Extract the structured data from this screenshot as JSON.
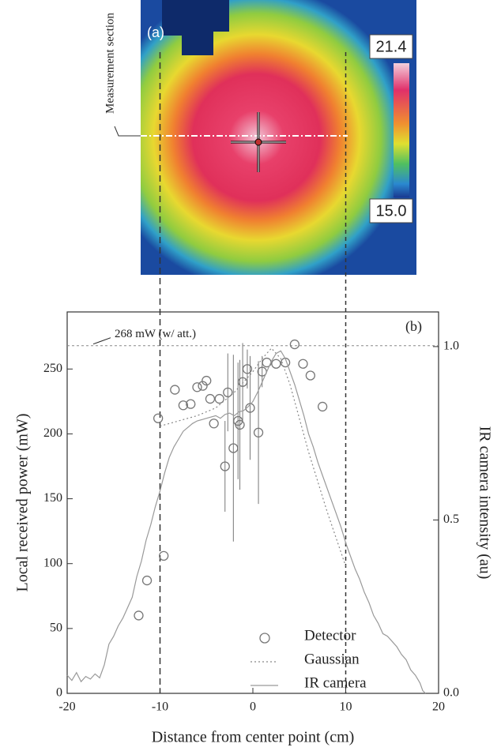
{
  "image": {
    "label": "(a)",
    "section_label": "Measurement section",
    "colorbar_max": "21.4",
    "colorbar_min": "15.0"
  },
  "chart_data": {
    "type": "line",
    "label": "(b)",
    "xlabel": "Distance from center point (cm)",
    "ylabel": "Local received power (mW)",
    "y2label": "IR camera intensity (au)",
    "xlim": [
      -20,
      20
    ],
    "xticks": [
      -20,
      -10,
      0,
      10,
      20
    ],
    "ylim": [
      0,
      294
    ],
    "yticks": [
      0,
      50,
      100,
      150,
      200,
      250
    ],
    "y2lim": [
      0,
      1.1
    ],
    "y2ticks": [
      {
        "value": 0,
        "label": "0.0"
      },
      {
        "value": 0.5,
        "label": "0.5"
      },
      {
        "value": 1,
        "label": "1.0"
      }
    ],
    "reference_line": {
      "value": 268,
      "label": "268  mW (w/ att.)"
    },
    "section_x": [
      -10,
      10
    ],
    "legend": "lower right",
    "series": [
      {
        "name": "Detector",
        "style": "markers",
        "color": "#777777",
        "x": [
          -12.3,
          -11.4,
          -10.2,
          -9.6,
          -8.4,
          -7.5,
          -6.7,
          -6,
          -5.4,
          -5,
          -4.6,
          -4.2,
          -3.6,
          -3,
          -2.7,
          -2.1,
          -1.6,
          -1.4,
          -1.1,
          -0.6,
          -0.3,
          0.6,
          1,
          1.5,
          2.5,
          3.5,
          4.5,
          5.4,
          6.2,
          7.5
        ],
        "values": [
          60,
          87,
          212,
          106,
          234,
          222,
          223,
          236,
          237,
          241,
          227,
          208,
          227,
          175,
          232,
          189,
          210,
          207,
          240,
          250,
          220,
          201,
          248,
          255,
          254,
          255,
          269,
          254,
          245,
          221
        ],
        "errors": [
          null,
          null,
          null,
          null,
          null,
          null,
          null,
          null,
          null,
          null,
          null,
          null,
          null,
          35,
          30,
          72,
          45,
          50,
          30,
          15,
          40,
          55,
          12,
          null,
          null,
          null,
          null,
          null,
          null,
          null
        ]
      },
      {
        "name": "Gaussian",
        "style": "dotted",
        "color": "#888888",
        "x": [
          -10,
          -8,
          -6,
          -4,
          -2,
          0,
          1,
          2,
          3,
          4,
          5,
          6,
          8,
          10
        ],
        "values": [
          206,
          210,
          214,
          220,
          232,
          248,
          258,
          266,
          258,
          238,
          212,
          186,
          140,
          98
        ]
      },
      {
        "name": "IR camera",
        "style": "solid",
        "color": "#999999",
        "axis": "y",
        "x": [
          -20,
          -19.5,
          -19,
          -18.5,
          -18,
          -17.5,
          -17,
          -16.5,
          -16,
          -15.5,
          -15,
          -14.5,
          -14,
          -13.5,
          -13,
          -12.5,
          -12,
          -11.5,
          -11,
          -10.5,
          -10,
          -9.5,
          -9,
          -8.5,
          -8,
          -7.5,
          -7,
          -6.5,
          -6,
          -5.5,
          -5,
          -4.5,
          -4,
          -3.5,
          -3,
          -2.5,
          -2,
          -1.5,
          -1,
          -0.5,
          0,
          0.5,
          1,
          1.5,
          2,
          2.5,
          3,
          3.5,
          4,
          4.5,
          5,
          5.5,
          6,
          6.5,
          7,
          7.5,
          8,
          8.5,
          9,
          9.5,
          10,
          10.5,
          11,
          11.5,
          12,
          12.5,
          13,
          13.5,
          14,
          14.5,
          15,
          15.5,
          16,
          16.5,
          17,
          17.5,
          18,
          18.3,
          18.6
        ],
        "values": [
          14,
          10,
          16,
          9,
          13,
          11,
          15,
          12,
          22,
          38,
          44,
          52,
          58,
          66,
          74,
          90,
          102,
          118,
          130,
          144,
          156,
          170,
          182,
          190,
          196,
          202,
          205,
          208,
          210,
          211,
          212,
          213,
          214,
          212,
          215,
          216,
          214,
          217,
          218,
          221,
          225,
          232,
          240,
          248,
          256,
          262,
          264,
          258,
          248,
          238,
          226,
          214,
          200,
          190,
          178,
          168,
          158,
          148,
          138,
          128,
          116,
          106,
          96,
          88,
          78,
          70,
          60,
          54,
          46,
          44,
          40,
          36,
          30,
          26,
          18,
          14,
          8,
          2,
          0
        ]
      }
    ]
  }
}
